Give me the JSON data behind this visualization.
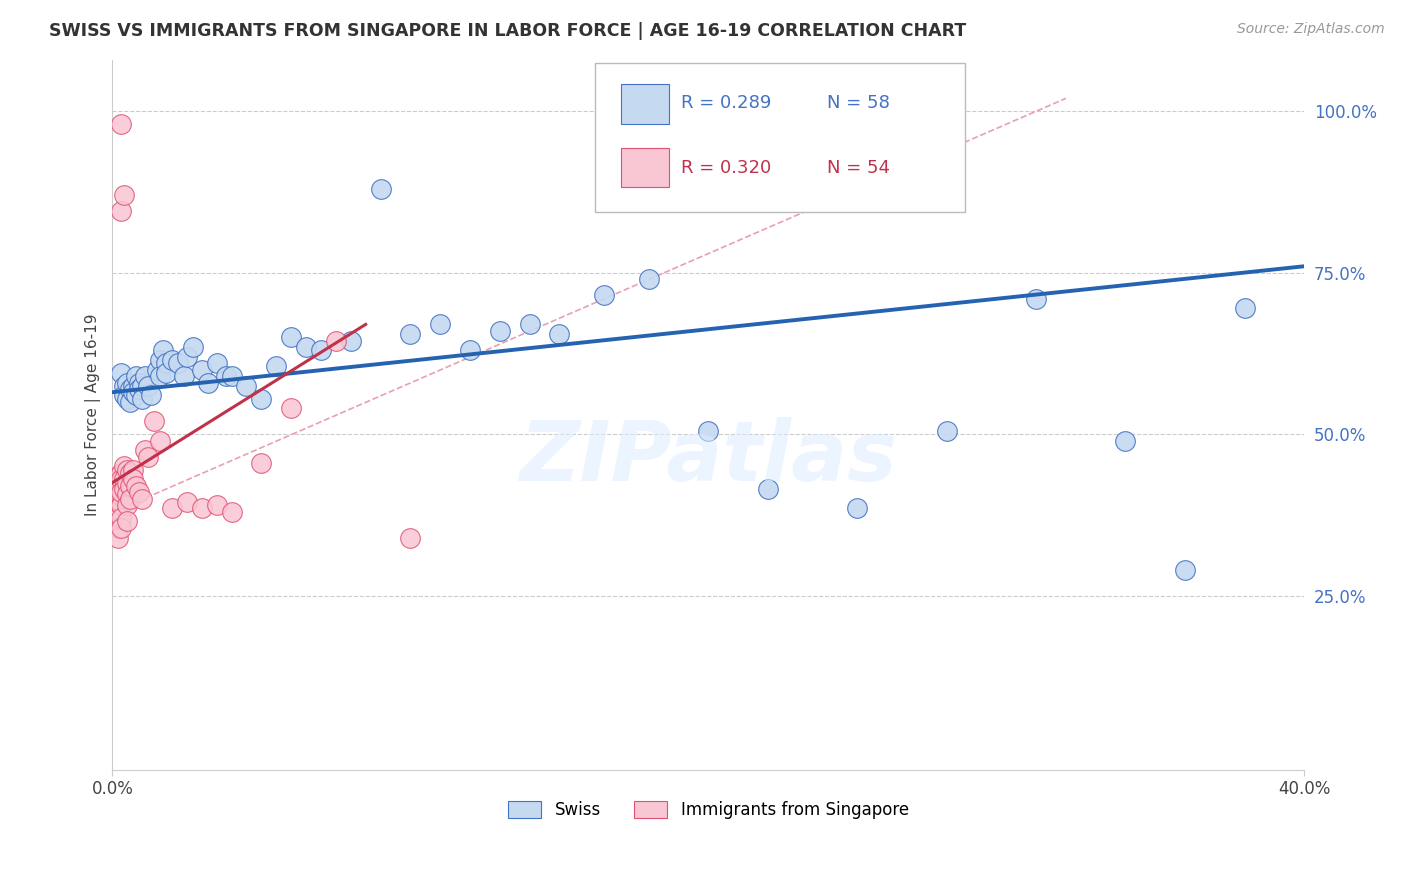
{
  "title": "SWISS VS IMMIGRANTS FROM SINGAPORE IN LABOR FORCE | AGE 16-19 CORRELATION CHART",
  "source": "Source: ZipAtlas.com",
  "ylabel": "In Labor Force | Age 16-19",
  "xlim": [
    0.0,
    0.4
  ],
  "ylim": [
    -0.02,
    1.08
  ],
  "ytick_vals": [
    0.25,
    0.5,
    0.75,
    1.0
  ],
  "ytick_labels": [
    "25.0%",
    "50.0%",
    "75.0%",
    "100.0%"
  ],
  "xtick_vals": [
    0.0,
    0.4
  ],
  "xtick_labels": [
    "0.0%",
    "40.0%"
  ],
  "legend_blue_r": "R = 0.289",
  "legend_blue_n": "N = 58",
  "legend_pink_r": "R = 0.320",
  "legend_pink_n": "N = 54",
  "watermark": "ZIPatlas",
  "blue_color": "#c5d9f0",
  "blue_edge_color": "#4472c4",
  "pink_color": "#f9c6d4",
  "pink_edge_color": "#e05070",
  "blue_line_color": "#2563b0",
  "pink_line_color": "#c0324a",
  "diag_line_color": "#e8a0b0",
  "grid_color": "#cccccc",
  "swiss_x": [
    0.003,
    0.004,
    0.004,
    0.005,
    0.005,
    0.006,
    0.006,
    0.007,
    0.007,
    0.008,
    0.008,
    0.009,
    0.009,
    0.01,
    0.01,
    0.011,
    0.012,
    0.013,
    0.015,
    0.016,
    0.016,
    0.017,
    0.018,
    0.018,
    0.02,
    0.022,
    0.024,
    0.025,
    0.027,
    0.03,
    0.032,
    0.035,
    0.038,
    0.04,
    0.045,
    0.05,
    0.055,
    0.06,
    0.065,
    0.07,
    0.08,
    0.09,
    0.1,
    0.11,
    0.12,
    0.13,
    0.14,
    0.15,
    0.165,
    0.18,
    0.2,
    0.22,
    0.25,
    0.28,
    0.31,
    0.34,
    0.36,
    0.38
  ],
  "swiss_y": [
    0.595,
    0.575,
    0.56,
    0.58,
    0.555,
    0.57,
    0.55,
    0.575,
    0.565,
    0.59,
    0.56,
    0.58,
    0.57,
    0.575,
    0.555,
    0.59,
    0.575,
    0.56,
    0.6,
    0.615,
    0.59,
    0.63,
    0.61,
    0.595,
    0.615,
    0.61,
    0.59,
    0.62,
    0.635,
    0.6,
    0.58,
    0.61,
    0.59,
    0.59,
    0.575,
    0.555,
    0.605,
    0.65,
    0.635,
    0.63,
    0.645,
    0.88,
    0.655,
    0.67,
    0.63,
    0.66,
    0.67,
    0.655,
    0.715,
    0.74,
    0.505,
    0.415,
    0.385,
    0.505,
    0.71,
    0.49,
    0.29,
    0.695
  ],
  "sg_x": [
    0.001,
    0.001,
    0.001,
    0.001,
    0.001,
    0.002,
    0.002,
    0.002,
    0.002,
    0.002,
    0.002,
    0.002,
    0.002,
    0.002,
    0.003,
    0.003,
    0.003,
    0.003,
    0.003,
    0.003,
    0.003,
    0.003,
    0.004,
    0.004,
    0.004,
    0.005,
    0.005,
    0.005,
    0.005,
    0.006,
    0.006,
    0.006,
    0.007,
    0.007,
    0.008,
    0.009,
    0.01,
    0.011,
    0.012,
    0.014,
    0.016,
    0.02,
    0.025,
    0.03,
    0.035,
    0.04,
    0.05,
    0.06,
    0.075,
    0.1,
    0.003,
    0.003,
    0.004,
    0.005
  ],
  "sg_y": [
    0.425,
    0.405,
    0.39,
    0.375,
    0.36,
    0.435,
    0.415,
    0.4,
    0.385,
    0.37,
    0.355,
    0.34,
    0.42,
    0.4,
    0.44,
    0.42,
    0.405,
    0.39,
    0.37,
    0.355,
    0.43,
    0.41,
    0.45,
    0.43,
    0.415,
    0.445,
    0.425,
    0.408,
    0.39,
    0.44,
    0.42,
    0.4,
    0.445,
    0.43,
    0.42,
    0.41,
    0.4,
    0.475,
    0.465,
    0.52,
    0.49,
    0.385,
    0.395,
    0.385,
    0.39,
    0.38,
    0.455,
    0.54,
    0.645,
    0.34,
    0.98,
    0.845,
    0.87,
    0.365
  ],
  "blue_trend_x": [
    0.0,
    0.4
  ],
  "blue_trend_y": [
    0.565,
    0.76
  ],
  "pink_trend_x": [
    0.0,
    0.085
  ],
  "pink_trend_y": [
    0.425,
    0.67
  ],
  "diag_line_x": [
    0.003,
    0.32
  ],
  "diag_line_y": [
    0.385,
    1.02
  ]
}
